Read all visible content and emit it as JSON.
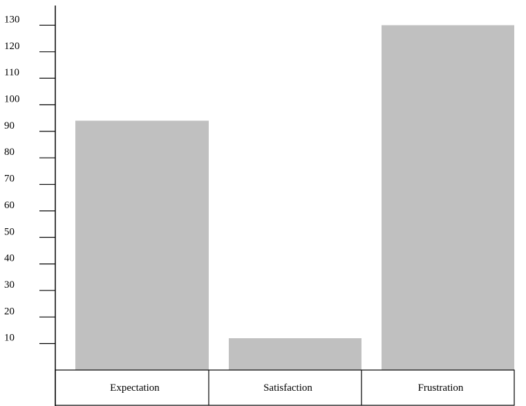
{
  "chart_data": {
    "type": "bar",
    "title": "",
    "xlabel": "",
    "ylabel": "",
    "categories": [
      "Expectation",
      "Satisfaction",
      "Frustration"
    ],
    "values": [
      94,
      12,
      130
    ],
    "ylim": [
      0,
      130
    ],
    "yticks": [
      10,
      20,
      30,
      40,
      50,
      60,
      70,
      80,
      90,
      100,
      110,
      120,
      130
    ],
    "bar_color": "#c0c0c0",
    "grid": false,
    "legend": "none"
  }
}
